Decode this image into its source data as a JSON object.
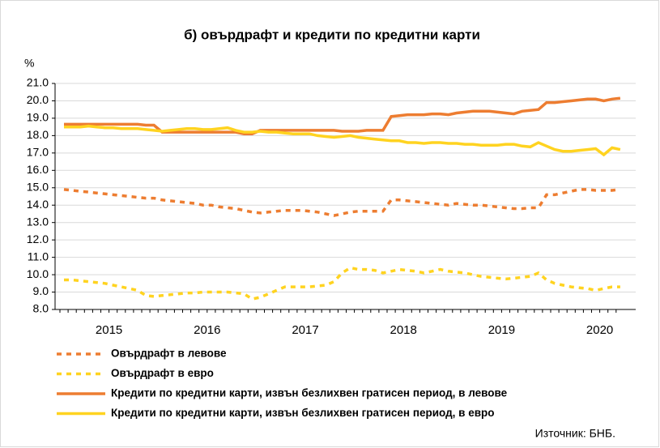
{
  "chart_data": {
    "type": "line",
    "title": "б) овърдрафт и кредити по кредитни карти",
    "y_label": "%",
    "source": "Източник: БНБ.",
    "categories": [
      null,
      null,
      null,
      null,
      null,
      null,
      "2015",
      null,
      null,
      null,
      null,
      null,
      null,
      null,
      null,
      null,
      null,
      null,
      "2016",
      null,
      null,
      null,
      null,
      null,
      null,
      null,
      null,
      null,
      null,
      null,
      "2017",
      null,
      null,
      null,
      null,
      null,
      null,
      null,
      null,
      null,
      null,
      null,
      "2018",
      null,
      null,
      null,
      null,
      null,
      null,
      null,
      null,
      null,
      null,
      null,
      "2019",
      null,
      null,
      null,
      null,
      null,
      null,
      null,
      null,
      null,
      null,
      null,
      "2020",
      null,
      null
    ],
    "ylim": [
      8,
      21
    ],
    "yticks": [
      {
        "value": 8,
        "label": "8.0"
      },
      {
        "value": 9,
        "label": "9.0"
      },
      {
        "value": 10,
        "label": "10.0"
      },
      {
        "value": 11,
        "label": "11.0"
      },
      {
        "value": 12,
        "label": "12.0"
      },
      {
        "value": 13,
        "label": "13.0"
      },
      {
        "value": 14,
        "label": "14.0"
      },
      {
        "value": 15,
        "label": "15.0"
      },
      {
        "value": 16,
        "label": "16.0"
      },
      {
        "value": 17,
        "label": "17.0"
      },
      {
        "value": 18,
        "label": "18.0"
      },
      {
        "value": 19,
        "label": "19.0"
      },
      {
        "value": 20,
        "label": "20.0"
      },
      {
        "value": 21,
        "label": "21.0"
      }
    ],
    "grid": true,
    "series": [
      {
        "name": "Овърдрафт в левове",
        "color": "#ed7d31",
        "dashed": true,
        "values": [
          14.9,
          14.85,
          14.8,
          14.75,
          14.7,
          14.65,
          14.6,
          14.55,
          14.5,
          14.45,
          14.4,
          14.4,
          14.3,
          14.25,
          14.2,
          14.15,
          14.1,
          14.0,
          14.0,
          13.9,
          13.85,
          13.8,
          13.7,
          13.6,
          13.55,
          13.6,
          13.65,
          13.7,
          13.7,
          13.7,
          13.65,
          13.6,
          13.5,
          13.4,
          13.5,
          13.6,
          13.65,
          13.65,
          13.65,
          13.65,
          14.3,
          14.3,
          14.25,
          14.2,
          14.15,
          14.1,
          14.05,
          14.0,
          14.1,
          14.05,
          14.0,
          14.0,
          13.95,
          13.9,
          13.85,
          13.8,
          13.8,
          13.85,
          13.85,
          14.6,
          14.6,
          14.7,
          14.8,
          14.9,
          14.9,
          14.85,
          14.85,
          14.85,
          14.9
        ]
      },
      {
        "name": "Овърдрафт в евро",
        "color": "#ffd320",
        "dashed": true,
        "values": [
          9.7,
          9.7,
          9.65,
          9.6,
          9.55,
          9.5,
          9.4,
          9.3,
          9.2,
          9.1,
          8.8,
          8.75,
          8.8,
          8.85,
          8.9,
          8.95,
          8.95,
          9.0,
          9.0,
          9.0,
          9.0,
          8.95,
          8.9,
          8.6,
          8.7,
          8.9,
          9.1,
          9.3,
          9.3,
          9.3,
          9.3,
          9.35,
          9.4,
          9.6,
          10.1,
          10.4,
          10.3,
          10.3,
          10.25,
          10.1,
          10.2,
          10.3,
          10.25,
          10.2,
          10.1,
          10.2,
          10.3,
          10.2,
          10.15,
          10.1,
          10.0,
          9.9,
          9.85,
          9.8,
          9.75,
          9.8,
          9.85,
          9.9,
          10.1,
          9.7,
          9.5,
          9.4,
          9.3,
          9.25,
          9.2,
          9.1,
          9.2,
          9.3,
          9.3
        ]
      },
      {
        "name": "Кредити по кредитни карти, извън безлихвен гратисен период, в левове",
        "color": "#ed7d31",
        "dashed": false,
        "values": [
          18.65,
          18.65,
          18.65,
          18.65,
          18.65,
          18.65,
          18.65,
          18.65,
          18.65,
          18.65,
          18.6,
          18.6,
          18.2,
          18.2,
          18.2,
          18.2,
          18.2,
          18.2,
          18.2,
          18.2,
          18.2,
          18.2,
          18.1,
          18.1,
          18.3,
          18.3,
          18.3,
          18.3,
          18.3,
          18.3,
          18.3,
          18.3,
          18.3,
          18.3,
          18.25,
          18.25,
          18.25,
          18.3,
          18.3,
          18.3,
          19.1,
          19.15,
          19.2,
          19.2,
          19.2,
          19.25,
          19.25,
          19.2,
          19.3,
          19.35,
          19.4,
          19.4,
          19.4,
          19.35,
          19.3,
          19.25,
          19.4,
          19.45,
          19.5,
          19.9,
          19.9,
          19.95,
          20.0,
          20.05,
          20.1,
          20.1,
          20.0,
          20.1,
          20.15
        ]
      },
      {
        "name": "Кредити по кредитни карти, извън безлихвен гратисен период, в евро",
        "color": "#ffd320",
        "dashed": false,
        "values": [
          18.5,
          18.5,
          18.5,
          18.55,
          18.5,
          18.45,
          18.45,
          18.4,
          18.4,
          18.4,
          18.35,
          18.3,
          18.25,
          18.3,
          18.35,
          18.4,
          18.4,
          18.35,
          18.35,
          18.4,
          18.45,
          18.3,
          18.2,
          18.2,
          18.25,
          18.2,
          18.2,
          18.15,
          18.1,
          18.1,
          18.1,
          18.0,
          17.95,
          17.9,
          17.95,
          18.0,
          17.9,
          17.85,
          17.8,
          17.75,
          17.7,
          17.7,
          17.6,
          17.6,
          17.55,
          17.6,
          17.6,
          17.55,
          17.55,
          17.5,
          17.5,
          17.45,
          17.45,
          17.45,
          17.5,
          17.5,
          17.4,
          17.35,
          17.6,
          17.4,
          17.2,
          17.1,
          17.1,
          17.15,
          17.2,
          17.25,
          16.9,
          17.3,
          17.2
        ]
      }
    ]
  }
}
